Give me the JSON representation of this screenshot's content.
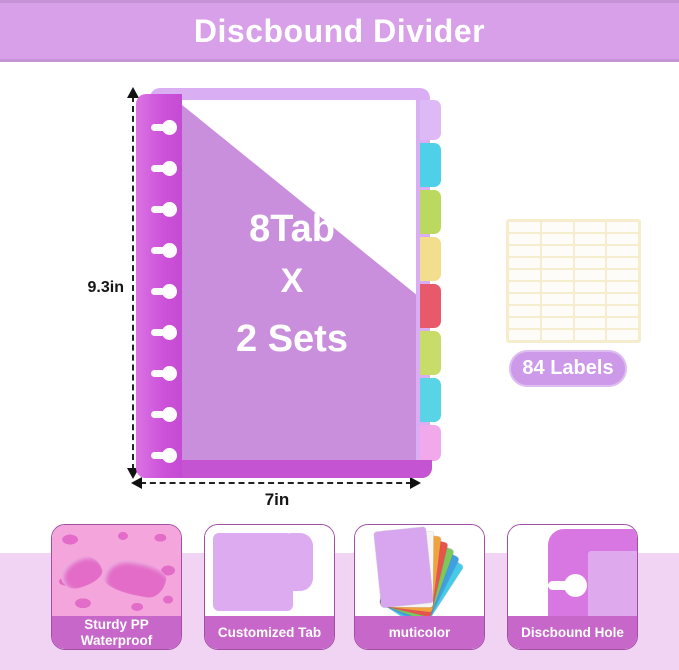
{
  "banner": {
    "title": "Discbound Divider",
    "bg_color": "#D7A0E8"
  },
  "product": {
    "overlay": {
      "line1": "8Tab",
      "line2": "X",
      "line3": "2 Sets"
    },
    "height_label": "9.3in",
    "width_label": "7in",
    "tab_count": 8,
    "set_count": 2,
    "disc_hole_count": 9,
    "cover_color": "#C98FDC",
    "spine_color": "#C44BD3",
    "tabs": [
      {
        "name": "tab-lavender",
        "color": "#DDB9F6"
      },
      {
        "name": "tab-cyan",
        "color": "#4FD0E9"
      },
      {
        "name": "tab-lime",
        "color": "#BBD95F"
      },
      {
        "name": "tab-yellow",
        "color": "#F2DE8C"
      },
      {
        "name": "tab-red",
        "color": "#E85A6B"
      },
      {
        "name": "tab-lime-2",
        "color": "#C8DC69"
      },
      {
        "name": "tab-cyan-2",
        "color": "#58D4E6"
      },
      {
        "name": "tab-pink",
        "color": "#F1A9EC"
      }
    ]
  },
  "labels_sheet": {
    "badge_text": "84 Labels",
    "grid_cols": 4,
    "grid_rows": 10
  },
  "features": [
    {
      "line1": "Sturdy PP",
      "line2": "Waterproof"
    },
    {
      "line1": "Customized Tab",
      "line2": ""
    },
    {
      "line1": "muticolor",
      "line2": ""
    },
    {
      "line1": "Discbound Hole",
      "line2": ""
    }
  ],
  "feature_fan_colors": [
    "#D8A6EF",
    "#F5F5F2",
    "#F0A23C",
    "#E6544C",
    "#7CC85A",
    "#3F9FE0",
    "#45CBE8"
  ],
  "theme": {
    "band_color": "#F1D3F4",
    "card_strip_color": "#C767C9",
    "badge_color": "#CC9AE8",
    "dimension_color": "#111111"
  }
}
